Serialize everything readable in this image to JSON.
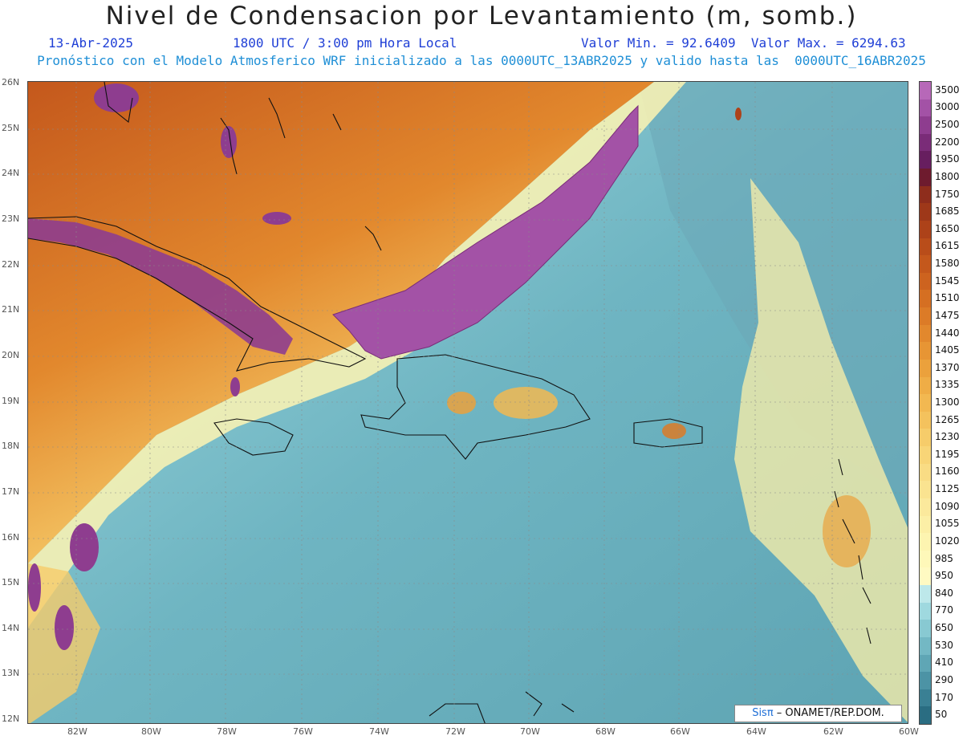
{
  "title": "Nivel de Condensacion por Levantamiento (m, somb.)",
  "date": "13-Abr-2025",
  "time": "1800 UTC / 3:00 pm Hora Local",
  "minmax": "Valor Min. = 92.6409  Valor Max. = 6294.63",
  "model_line": "Pronóstico con el Modelo Atmosferico WRF inicializado a las 0000UTC_13ABR2025 y valido hasta las  0000UTC_16ABR2025",
  "credit_sis": "Sisπ",
  "credit_rest": " – ONAMET/REP.DOM.",
  "lat_labels": [
    "26N",
    "25N",
    "24N",
    "23N",
    "22N",
    "21N",
    "20N",
    "19N",
    "18N",
    "17N",
    "16N",
    "15N",
    "14N",
    "13N",
    "12N"
  ],
  "lon_labels": [
    "82W",
    "80W",
    "78W",
    "76W",
    "74W",
    "72W",
    "70W",
    "68W",
    "66W",
    "64W",
    "62W",
    "60W"
  ],
  "colorbar_labels": [
    "3500",
    "3000",
    "2500",
    "2200",
    "1950",
    "1800",
    "1750",
    "1685",
    "1650",
    "1615",
    "1580",
    "1545",
    "1510",
    "1475",
    "1440",
    "1405",
    "1370",
    "1335",
    "1300",
    "1265",
    "1230",
    "1195",
    "1160",
    "1125",
    "1090",
    "1055",
    "1020",
    "985",
    "950",
    "840",
    "770",
    "650",
    "530",
    "410",
    "290",
    "170",
    "50"
  ],
  "colorbar_colors": [
    "#b768b8",
    "#a352a6",
    "#8e3d8f",
    "#7a2c78",
    "#671e5f",
    "#6e1b2e",
    "#8e2d1c",
    "#9e3819",
    "#ad4219",
    "#b94d1a",
    "#c4581c",
    "#cd631f",
    "#d56f22",
    "#dc7b27",
    "#e2882d",
    "#e79534",
    "#eba13c",
    "#efad46",
    "#f2b851",
    "#f4c25d",
    "#f6cc6a",
    "#f8d577",
    "#f9dc84",
    "#fae390",
    "#fbe99c",
    "#fcefa6",
    "#fdf4b0",
    "#fef8b9",
    "#fffac2",
    "#bde8ea",
    "#9fd9df",
    "#88c9d2",
    "#73b8c4",
    "#5fa6b5",
    "#4c93a5",
    "#3a8094",
    "#2a6d82"
  ]
}
